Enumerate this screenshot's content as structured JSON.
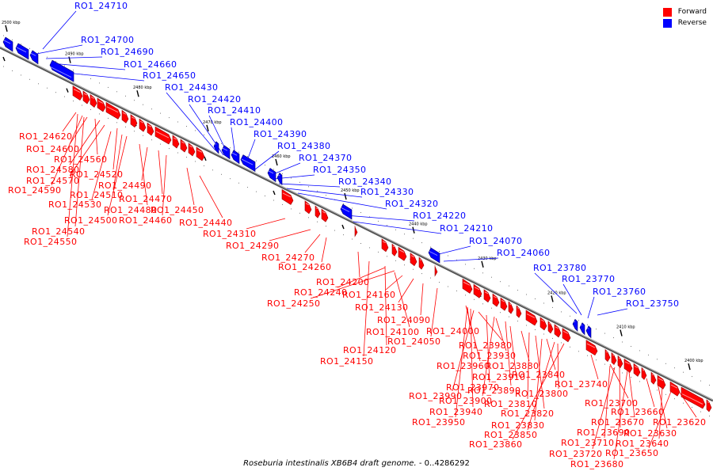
{
  "legend": {
    "forward": {
      "label": "Forward",
      "color": "#ff0000"
    },
    "reverse": {
      "label": "Reverse",
      "color": "#0000ff"
    }
  },
  "caption": {
    "organism": "Roseburia intestinalis XB6B4 draft genome.",
    "range": " - 0..4286292"
  },
  "kbp_marks": [
    "2500 kbp",
    "2490 kbp",
    "2480 kbp",
    "2470 kbp",
    "2460 kbp",
    "2450 kbp",
    "2440 kbp",
    "2430 kbp",
    "2420 kbp",
    "2410 kbp",
    "2400 kbp",
    "2390 kbp"
  ],
  "reverse_genes": [
    "RO1_24710",
    "RO1_24700",
    "RO1_24690",
    "RO1_24660",
    "RO1_24650",
    "RO1_24430",
    "RO1_24420",
    "RO1_24410",
    "RO1_24400",
    "RO1_24390",
    "RO1_24380",
    "RO1_24370",
    "RO1_24350",
    "RO1_24340",
    "RO1_24330",
    "RO1_24320",
    "RO1_24220",
    "RO1_24210",
    "RO1_24070",
    "RO1_24060",
    "RO1_23780",
    "RO1_23770",
    "RO1_23760",
    "RO1_23750"
  ],
  "forward_genes": [
    "RO1_24620",
    "RO1_24600",
    "RO1_24560",
    "RO1_24580",
    "RO1_24520",
    "RO1_24570",
    "RO1_24590",
    "RO1_24490",
    "RO1_24510",
    "RO1_24470",
    "RO1_24530",
    "RO1_24480",
    "RO1_24450",
    "RO1_24500",
    "RO1_24460",
    "RO1_24440",
    "RO1_24540",
    "RO1_24550",
    "RO1_24310",
    "RO1_24290",
    "RO1_24270",
    "RO1_24260",
    "RO1_24200",
    "RO1_24240",
    "RO1_24250",
    "RO1_24160",
    "RO1_24130",
    "RO1_24090",
    "RO1_24100",
    "RO1_24000",
    "RO1_24050",
    "RO1_24120",
    "RO1_24150",
    "RO1_23980",
    "RO1_23930",
    "RO1_23960",
    "RO1_23910",
    "RO1_23880",
    "RO1_23970",
    "RO1_23840",
    "RO1_23890",
    "RO1_23990",
    "RO1_23800",
    "RO1_23900",
    "RO1_23810",
    "RO1_23740",
    "RO1_23940",
    "RO1_23820",
    "RO1_23950",
    "RO1_23830",
    "RO1_23850",
    "RO1_23860",
    "RO1_23700",
    "RO1_23660",
    "RO1_23670",
    "RO1_23620",
    "RO1_23690",
    "RO1_23630",
    "RO1_23710",
    "RO1_23640",
    "RO1_23720",
    "RO1_23650",
    "RO1_23680"
  ]
}
